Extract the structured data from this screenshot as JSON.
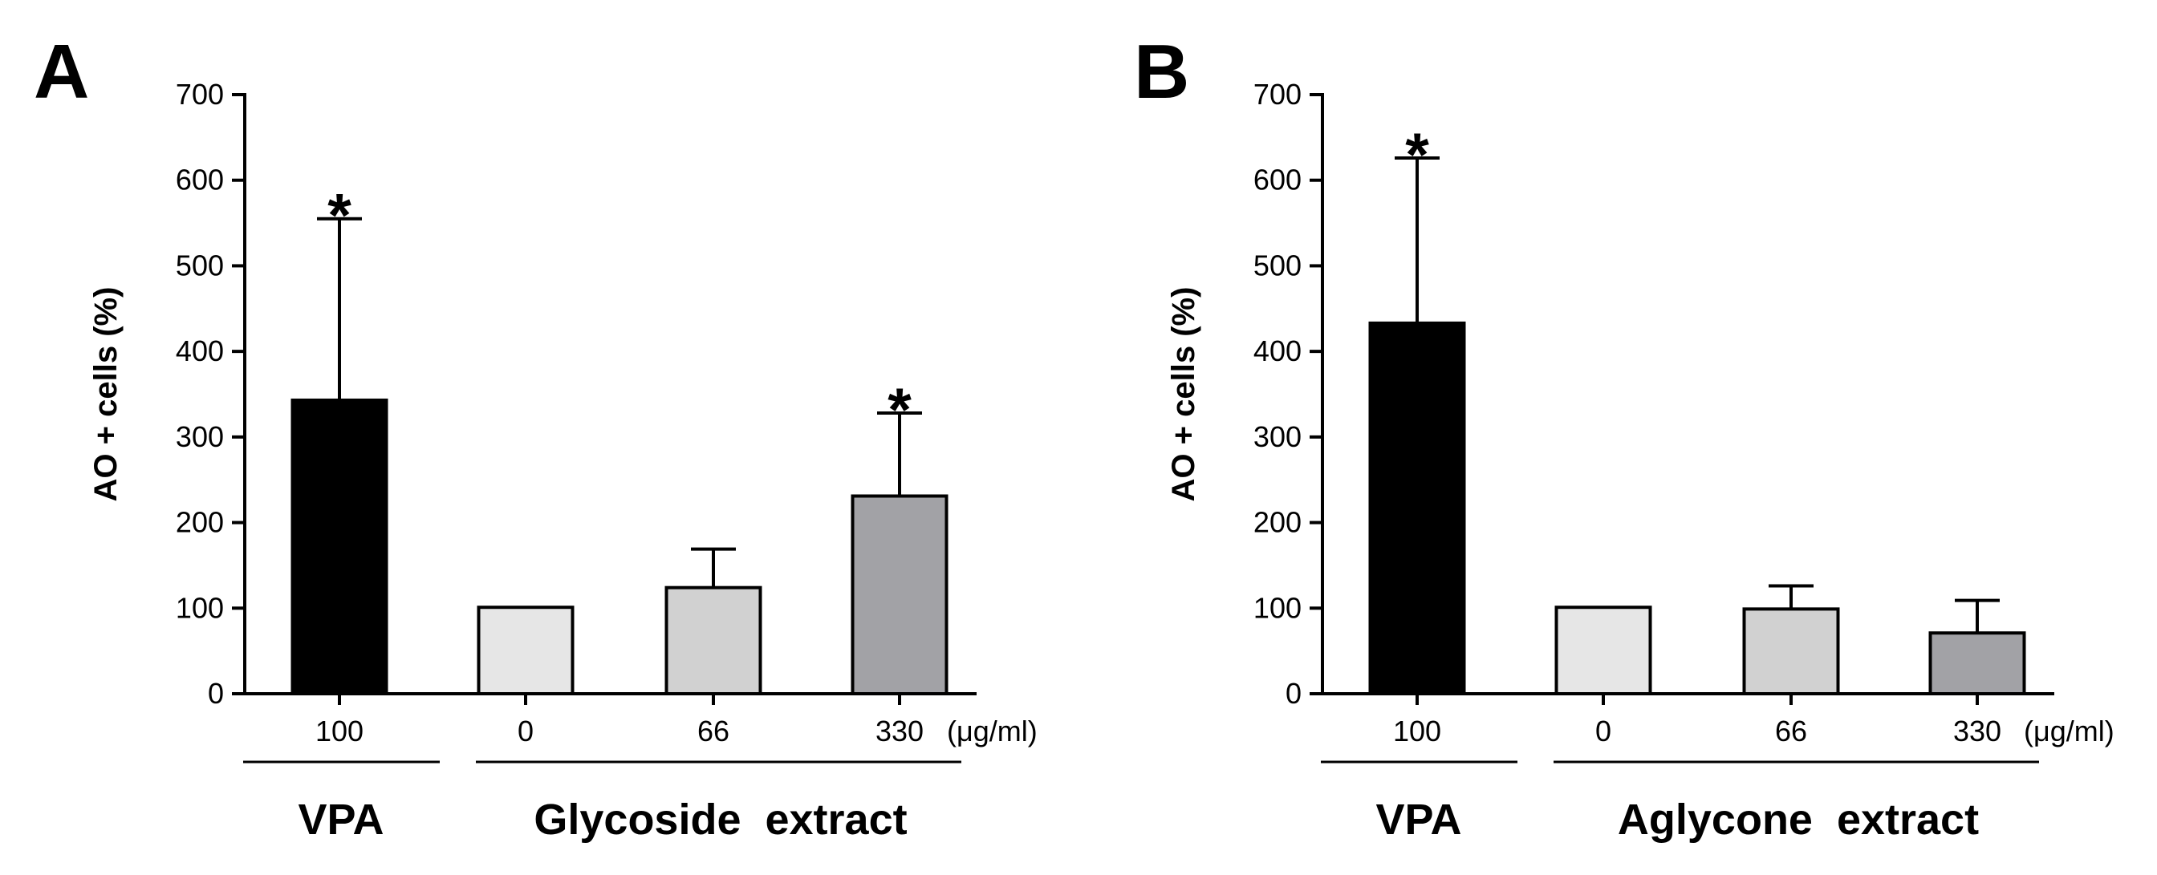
{
  "chart_data": [
    {
      "type": "bar",
      "panel_label": "A",
      "ylabel": "AO + cells (%)",
      "ylim": [
        0,
        700
      ],
      "yticks": [
        0,
        100,
        200,
        300,
        400,
        500,
        600,
        700
      ],
      "categories": [
        "100",
        "0",
        "66",
        "330"
      ],
      "unit_label": "(μg/ml)",
      "values": [
        343,
        101,
        124,
        231
      ],
      "errors": [
        212,
        0,
        45,
        97
      ],
      "significance": [
        "*",
        "",
        "",
        "*"
      ],
      "bar_colors": [
        "#000000",
        "#e6e6e6",
        "#d1d1d1",
        "#a2a2a6"
      ],
      "groups": [
        {
          "label": "VPA",
          "categories": [
            "100"
          ]
        },
        {
          "label": "Glycoside  extract",
          "categories": [
            "0",
            "66",
            "330"
          ]
        }
      ]
    },
    {
      "type": "bar",
      "panel_label": "B",
      "ylabel": "AO + cells (%)",
      "ylim": [
        0,
        700
      ],
      "yticks": [
        0,
        100,
        200,
        300,
        400,
        500,
        600,
        700
      ],
      "categories": [
        "100",
        "0",
        "66",
        "330"
      ],
      "unit_label": "(μg/ml)",
      "values": [
        433,
        101,
        99,
        71
      ],
      "errors": [
        193,
        0,
        27,
        38
      ],
      "significance": [
        "*",
        "",
        "",
        ""
      ],
      "bar_colors": [
        "#000000",
        "#e6e6e6",
        "#d1d1d1",
        "#a2a2a6"
      ],
      "groups": [
        {
          "label": "VPA",
          "categories": [
            "100"
          ]
        },
        {
          "label": "Aglycone  extract",
          "categories": [
            "0",
            "66",
            "330"
          ]
        }
      ]
    }
  ]
}
